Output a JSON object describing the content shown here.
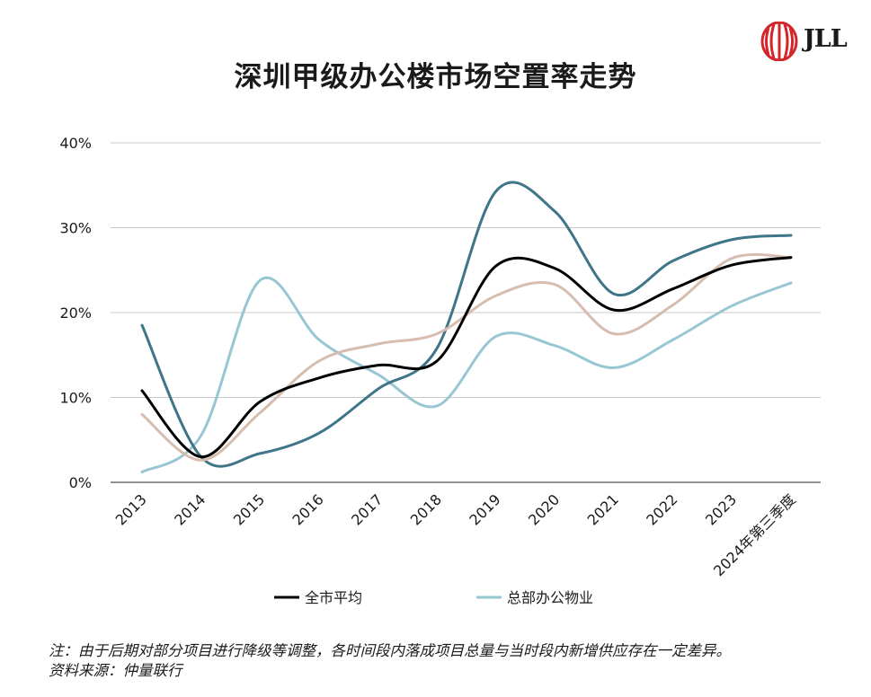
{
  "header": {
    "title": "深圳甲级办公楼市场空置率走势"
  },
  "logo": {
    "text": "JLL",
    "color": "#d3252a"
  },
  "footnote": {
    "line1": "注：由于后期对部分项目进行降级等调整，各时间段内落成项目总量与当时段内新增供应存在一定差异。",
    "line2": "资料来源：仲量联行"
  },
  "chart_data": {
    "type": "line",
    "title": "深圳甲级办公楼市场空置率走势",
    "xlabel": "",
    "ylabel": "",
    "categories": [
      "2013",
      "2014",
      "2015",
      "2016",
      "2017",
      "2018",
      "2019",
      "2020",
      "2021",
      "2022",
      "2023",
      "2024年第三季度"
    ],
    "ylim": [
      0,
      40
    ],
    "yticks": [
      0,
      10,
      20,
      30,
      40
    ],
    "ytick_labels": [
      "0%",
      "10%",
      "20%",
      "30%",
      "40%"
    ],
    "grid": true,
    "legend_position": "bottom",
    "series": [
      {
        "name": "全市平均",
        "color": "#000000",
        "in_legend": true,
        "values": [
          10.8,
          3.0,
          9.5,
          12.3,
          13.8,
          14.3,
          25.5,
          25.2,
          20.3,
          22.8,
          25.6,
          26.5
        ]
      },
      {
        "name": "总部办公物业",
        "color": "#98c6d3",
        "in_legend": true,
        "values": [
          1.2,
          5.5,
          23.8,
          16.8,
          12.7,
          9.0,
          17.2,
          16.1,
          13.5,
          16.8,
          20.8,
          23.5
        ]
      },
      {
        "name": "",
        "color": "#3f7589",
        "in_legend": false,
        "values": [
          18.5,
          3.0,
          3.4,
          5.8,
          11.0,
          15.8,
          34.3,
          31.9,
          22.2,
          26.1,
          28.6,
          29.1
        ]
      },
      {
        "name": "",
        "color": "#d6bdb0",
        "in_legend": false,
        "values": [
          8.0,
          2.6,
          8.2,
          14.3,
          16.3,
          17.5,
          22.0,
          23.3,
          17.5,
          20.9,
          26.4,
          26.5
        ]
      }
    ]
  }
}
